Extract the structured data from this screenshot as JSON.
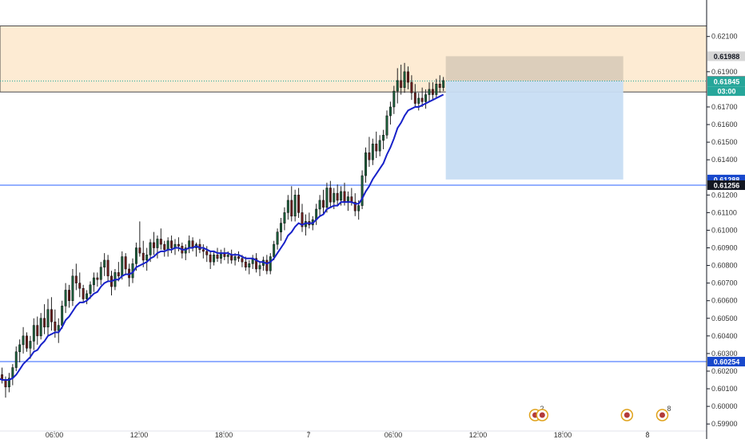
{
  "chart_data": {
    "type": "candlestick",
    "instrument_note": "",
    "x_ticks": [
      "06:00",
      "12:00",
      "18:00",
      "7",
      "06:00",
      "12:00",
      "18:00",
      "8"
    ],
    "y_ticks": [
      "0.62100",
      "0.61900",
      "0.61700",
      "0.61600",
      "0.61500",
      "0.61400",
      "0.61200",
      "0.61100",
      "0.61000",
      "0.60900",
      "0.60800",
      "0.60700",
      "0.60600",
      "0.60500",
      "0.60400",
      "0.60300",
      "0.60200",
      "0.60100",
      "0.60000",
      "0.59900"
    ],
    "ylim": [
      0.5986,
      0.6228
    ],
    "price_labels": [
      {
        "text": "0.61988",
        "value": 0.61988,
        "bg": "#d6d6d6",
        "fg": "#131722"
      },
      {
        "text": "0.61847",
        "value": 0.61847,
        "bg": "#131722",
        "fg": "#ffffff"
      },
      {
        "text": "0.61845",
        "value": 0.61845,
        "bg": "#26a69a",
        "fg": "#ffffff"
      },
      {
        "text": "03:00",
        "value": 0.6179,
        "bg": "#26a69a",
        "fg": "#ffffff"
      },
      {
        "text": "0.61288",
        "value": 0.61288,
        "bg": "#1848cc",
        "fg": "#ffffff"
      },
      {
        "text": "0.61256",
        "value": 0.61256,
        "bg": "#131722",
        "fg": "#ffffff"
      },
      {
        "text": "0.60254",
        "value": 0.60254,
        "bg": "#1848cc",
        "fg": "#ffffff"
      }
    ],
    "zone": {
      "from": 0.61785,
      "to": 0.6216,
      "color": "#fdebd3"
    },
    "levels": [
      0.61256,
      0.60254
    ],
    "position": {
      "entry": 0.61847,
      "target": 0.61988,
      "stop": 0.61288
    },
    "candles_per_day": 96,
    "x_start_offset": -22,
    "candles": [
      [
        0.6018,
        0.602,
        0.6014,
        0.6017
      ],
      [
        0.6017,
        0.6024,
        0.6016,
        0.602
      ],
      [
        0.602,
        0.6023,
        0.6014,
        0.6015
      ],
      [
        0.6015,
        0.6017,
        0.601,
        0.6014
      ],
      [
        0.6014,
        0.6021,
        0.6012,
        0.6018
      ],
      [
        0.6018,
        0.6019,
        0.6011,
        0.6012
      ],
      [
        0.6012,
        0.602,
        0.601,
        0.6016
      ],
      [
        0.6016,
        0.6024,
        0.6014,
        0.6021
      ],
      [
        0.6021,
        0.6027,
        0.6016,
        0.6018
      ],
      [
        0.6018,
        0.6022,
        0.6013,
        0.6015
      ],
      [
        0.6015,
        0.6017,
        0.6005,
        0.6011
      ],
      [
        0.6011,
        0.6019,
        0.6008,
        0.6016
      ],
      [
        0.6016,
        0.6024,
        0.6012,
        0.6022
      ],
      [
        0.6022,
        0.6034,
        0.602,
        0.6031
      ],
      [
        0.6031,
        0.6038,
        0.6025,
        0.6035
      ],
      [
        0.6035,
        0.6045,
        0.603,
        0.604
      ],
      [
        0.604,
        0.6042,
        0.6031,
        0.6033
      ],
      [
        0.6033,
        0.604,
        0.6027,
        0.6037
      ],
      [
        0.6037,
        0.605,
        0.6032,
        0.6046
      ],
      [
        0.6046,
        0.6051,
        0.6035,
        0.604
      ],
      [
        0.604,
        0.6053,
        0.6038,
        0.605
      ],
      [
        0.605,
        0.6058,
        0.6041,
        0.6045
      ],
      [
        0.6045,
        0.6061,
        0.604,
        0.6055
      ],
      [
        0.6055,
        0.6062,
        0.6043,
        0.6048
      ],
      [
        0.6048,
        0.6055,
        0.6039,
        0.6043
      ],
      [
        0.6043,
        0.605,
        0.6036,
        0.6046
      ],
      [
        0.6046,
        0.606,
        0.6044,
        0.6057
      ],
      [
        0.6057,
        0.607,
        0.6053,
        0.6066
      ],
      [
        0.6066,
        0.6069,
        0.6056,
        0.606
      ],
      [
        0.606,
        0.6078,
        0.6057,
        0.6074
      ],
      [
        0.6074,
        0.6081,
        0.6066,
        0.607
      ],
      [
        0.607,
        0.6076,
        0.6062,
        0.6067
      ],
      [
        0.6067,
        0.6069,
        0.6059,
        0.6061
      ],
      [
        0.6061,
        0.6066,
        0.6058,
        0.6064
      ],
      [
        0.6064,
        0.6071,
        0.6061,
        0.6069
      ],
      [
        0.6069,
        0.6076,
        0.6065,
        0.6073
      ],
      [
        0.6073,
        0.6076,
        0.6068,
        0.6072
      ],
      [
        0.6072,
        0.6082,
        0.6069,
        0.6079
      ],
      [
        0.6079,
        0.6087,
        0.6074,
        0.6083
      ],
      [
        0.6083,
        0.6086,
        0.6071,
        0.6074
      ],
      [
        0.6074,
        0.6077,
        0.6063,
        0.6068
      ],
      [
        0.6068,
        0.6078,
        0.6066,
        0.6076
      ],
      [
        0.6076,
        0.6082,
        0.6071,
        0.6074
      ],
      [
        0.6074,
        0.6088,
        0.6072,
        0.6085
      ],
      [
        0.6085,
        0.6087,
        0.6075,
        0.6078
      ],
      [
        0.6078,
        0.6081,
        0.6068,
        0.6073
      ],
      [
        0.6073,
        0.6084,
        0.607,
        0.6081
      ],
      [
        0.6081,
        0.6093,
        0.6077,
        0.609
      ],
      [
        0.609,
        0.6105,
        0.6085,
        0.6087
      ],
      [
        0.6087,
        0.6094,
        0.6079,
        0.6083
      ],
      [
        0.6083,
        0.609,
        0.6077,
        0.6086
      ],
      [
        0.6086,
        0.6095,
        0.6082,
        0.6093
      ],
      [
        0.6093,
        0.6099,
        0.6086,
        0.609
      ],
      [
        0.609,
        0.6097,
        0.6084,
        0.6095
      ],
      [
        0.6095,
        0.6101,
        0.6089,
        0.6092
      ],
      [
        0.6092,
        0.6094,
        0.6085,
        0.6089
      ],
      [
        0.6089,
        0.6096,
        0.6085,
        0.6094
      ],
      [
        0.6094,
        0.6097,
        0.6087,
        0.609
      ],
      [
        0.609,
        0.6095,
        0.6086,
        0.6092
      ],
      [
        0.6092,
        0.6096,
        0.6088,
        0.6091
      ],
      [
        0.6091,
        0.6093,
        0.6084,
        0.6087
      ],
      [
        0.6087,
        0.6092,
        0.6083,
        0.609
      ],
      [
        0.609,
        0.6097,
        0.6087,
        0.6094
      ],
      [
        0.6094,
        0.6096,
        0.6088,
        0.609
      ],
      [
        0.609,
        0.6093,
        0.6085,
        0.6092
      ],
      [
        0.6092,
        0.6095,
        0.6087,
        0.6089
      ],
      [
        0.6089,
        0.6092,
        0.6084,
        0.6088
      ],
      [
        0.6088,
        0.6091,
        0.6082,
        0.6086
      ],
      [
        0.6086,
        0.6088,
        0.6078,
        0.6082
      ],
      [
        0.6082,
        0.6088,
        0.608,
        0.6086
      ],
      [
        0.6086,
        0.609,
        0.6082,
        0.6084
      ],
      [
        0.6084,
        0.6089,
        0.6081,
        0.6087
      ],
      [
        0.6087,
        0.609,
        0.6083,
        0.6085
      ],
      [
        0.6085,
        0.6088,
        0.6081,
        0.6086
      ],
      [
        0.6086,
        0.6089,
        0.6081,
        0.6083
      ],
      [
        0.6083,
        0.6087,
        0.608,
        0.6085
      ],
      [
        0.6085,
        0.6088,
        0.6082,
        0.6084
      ],
      [
        0.6084,
        0.6086,
        0.6079,
        0.6082
      ],
      [
        0.6082,
        0.6085,
        0.6077,
        0.6079
      ],
      [
        0.6079,
        0.6083,
        0.6075,
        0.6081
      ],
      [
        0.6081,
        0.6086,
        0.6078,
        0.6084
      ],
      [
        0.6084,
        0.6087,
        0.6076,
        0.6078
      ],
      [
        0.6078,
        0.6082,
        0.6074,
        0.608
      ],
      [
        0.608,
        0.6085,
        0.6077,
        0.6083
      ],
      [
        0.6083,
        0.6086,
        0.6075,
        0.6077
      ],
      [
        0.6077,
        0.6087,
        0.6075,
        0.6085
      ],
      [
        0.6085,
        0.6094,
        0.6083,
        0.6092
      ],
      [
        0.6092,
        0.6101,
        0.6089,
        0.6099
      ],
      [
        0.6099,
        0.6107,
        0.6094,
        0.6104
      ],
      [
        0.6104,
        0.6113,
        0.61,
        0.611
      ],
      [
        0.611,
        0.612,
        0.6106,
        0.6117
      ],
      [
        0.6117,
        0.6125,
        0.6105,
        0.6108
      ],
      [
        0.6108,
        0.6123,
        0.6105,
        0.612
      ],
      [
        0.612,
        0.6124,
        0.6107,
        0.611
      ],
      [
        0.611,
        0.6115,
        0.6099,
        0.6102
      ],
      [
        0.6102,
        0.6109,
        0.6097,
        0.6105
      ],
      [
        0.6105,
        0.611,
        0.6101,
        0.6103
      ],
      [
        0.6103,
        0.6108,
        0.61,
        0.6106
      ],
      [
        0.6106,
        0.6115,
        0.6103,
        0.6112
      ],
      [
        0.6112,
        0.612,
        0.6108,
        0.6117
      ],
      [
        0.6117,
        0.6123,
        0.6109,
        0.6113
      ],
      [
        0.6113,
        0.6127,
        0.611,
        0.6124
      ],
      [
        0.6124,
        0.6128,
        0.6113,
        0.6116
      ],
      [
        0.6116,
        0.6124,
        0.6112,
        0.6121
      ],
      [
        0.6121,
        0.6126,
        0.6114,
        0.6117
      ],
      [
        0.6117,
        0.6125,
        0.6114,
        0.6122
      ],
      [
        0.6122,
        0.6127,
        0.6114,
        0.6116
      ],
      [
        0.6116,
        0.6122,
        0.6111,
        0.6119
      ],
      [
        0.6119,
        0.6124,
        0.6114,
        0.6116
      ],
      [
        0.6116,
        0.6121,
        0.6108,
        0.6111
      ],
      [
        0.6111,
        0.6117,
        0.6106,
        0.6114
      ],
      [
        0.6114,
        0.6134,
        0.6112,
        0.6131
      ],
      [
        0.6131,
        0.6147,
        0.6127,
        0.6144
      ],
      [
        0.6144,
        0.6153,
        0.6136,
        0.614
      ],
      [
        0.614,
        0.6152,
        0.6137,
        0.6149
      ],
      [
        0.6149,
        0.6156,
        0.6141,
        0.6145
      ],
      [
        0.6145,
        0.6154,
        0.6142,
        0.6151
      ],
      [
        0.6151,
        0.6157,
        0.6146,
        0.6154
      ],
      [
        0.6154,
        0.6168,
        0.6152,
        0.6165
      ],
      [
        0.6165,
        0.6173,
        0.616,
        0.617
      ],
      [
        0.617,
        0.6182,
        0.6166,
        0.6179
      ],
      [
        0.6179,
        0.6192,
        0.6172,
        0.6185
      ],
      [
        0.6185,
        0.6194,
        0.6177,
        0.6181
      ],
      [
        0.6181,
        0.6195,
        0.6178,
        0.619
      ],
      [
        0.619,
        0.6193,
        0.618,
        0.6184
      ],
      [
        0.6184,
        0.6188,
        0.6174,
        0.6178
      ],
      [
        0.6178,
        0.6183,
        0.617,
        0.6172
      ],
      [
        0.6172,
        0.6178,
        0.6168,
        0.6175
      ],
      [
        0.6175,
        0.6181,
        0.617,
        0.6173
      ],
      [
        0.6173,
        0.618,
        0.6169,
        0.6177
      ],
      [
        0.6177,
        0.6184,
        0.6173,
        0.618
      ],
      [
        0.618,
        0.6184,
        0.6174,
        0.6177
      ],
      [
        0.6177,
        0.6186,
        0.6175,
        0.6183
      ],
      [
        0.6183,
        0.6188,
        0.6178,
        0.6181
      ],
      [
        0.6181,
        0.6187,
        0.6179,
        0.6185
      ]
    ],
    "ema": [
      0.6018,
      0.6018,
      0.6017,
      0.6016,
      0.6016,
      0.6015,
      0.6015,
      0.6016,
      0.6016,
      0.6015,
      0.6015,
      0.6015,
      0.6016,
      0.6018,
      0.6021,
      0.6024,
      0.6026,
      0.6028,
      0.6031,
      0.6032,
      0.6035,
      0.6037,
      0.604,
      0.6041,
      0.6042,
      0.6042,
      0.6045,
      0.6049,
      0.6051,
      0.6054,
      0.6057,
      0.6059,
      0.6059,
      0.606,
      0.6062,
      0.6064,
      0.6065,
      0.6068,
      0.607,
      0.6071,
      0.6071,
      0.6072,
      0.6072,
      0.6074,
      0.6075,
      0.6075,
      0.6076,
      0.6079,
      0.608,
      0.6081,
      0.6082,
      0.6084,
      0.6085,
      0.6087,
      0.6088,
      0.6088,
      0.6089,
      0.6089,
      0.609,
      0.609,
      0.6089,
      0.6089,
      0.609,
      0.609,
      0.6091,
      0.609,
      0.609,
      0.6089,
      0.6088,
      0.6088,
      0.6087,
      0.6087,
      0.6087,
      0.6087,
      0.6086,
      0.6086,
      0.6086,
      0.6085,
      0.6084,
      0.6084,
      0.6084,
      0.6083,
      0.6082,
      0.6082,
      0.6081,
      0.6082,
      0.6084,
      0.6087,
      0.609,
      0.6093,
      0.6097,
      0.6099,
      0.6102,
      0.6104,
      0.6103,
      0.6104,
      0.6104,
      0.6104,
      0.6106,
      0.6108,
      0.6109,
      0.6112,
      0.6113,
      0.6114,
      0.6114,
      0.6116,
      0.6116,
      0.6116,
      0.6116,
      0.6115,
      0.6115,
      0.6118,
      0.6122,
      0.6125,
      0.6129,
      0.6132,
      0.6135,
      0.6138,
      0.6143,
      0.6147,
      0.6152,
      0.6158,
      0.6161,
      0.6165,
      0.6168,
      0.6169,
      0.617,
      0.617,
      0.6171,
      0.6172,
      0.6173,
      0.6174,
      0.6175,
      0.6176,
      0.6177
    ],
    "events": [
      {
        "x_slot": 180,
        "badge": "2"
      },
      {
        "x_slot": 182,
        "badge": ""
      },
      {
        "x_slot": 206,
        "badge": ""
      },
      {
        "x_slot": 216,
        "badge": "8"
      },
      {
        "x_slot": 236,
        "badge": ""
      }
    ],
    "colors": {
      "up": "#1a5e3a",
      "down": "#6b1d1d",
      "ema": "#1721c9",
      "level": "#2962ff",
      "target_fill": "#d8cbb8",
      "stop_fill": "#c7ddf3"
    }
  }
}
